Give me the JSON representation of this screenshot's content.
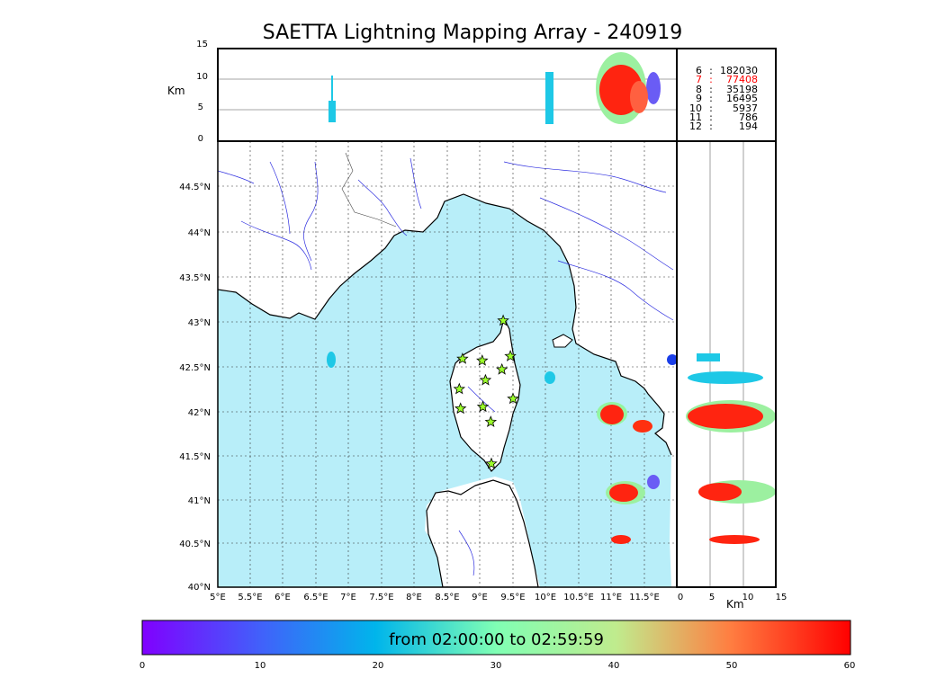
{
  "title": "SAETTA Lightning Mapping Array - 240919",
  "altitude_panel": {
    "ylabel": "Km",
    "ticks": [
      "15",
      "10",
      "5",
      "0"
    ]
  },
  "side_panel": {
    "xlabel": "Km",
    "ticks": [
      "0",
      "5",
      "10",
      "15"
    ]
  },
  "map": {
    "lat_ticks": [
      "44.5°N",
      "44°N",
      "43.5°N",
      "43°N",
      "42.5°N",
      "42°N",
      "41.5°N",
      "41°N",
      "40.5°N",
      "40°N"
    ],
    "lon_ticks": [
      "5°E",
      "5.5°E",
      "6°E",
      "6.5°E",
      "7°E",
      "7.5°E",
      "8°E",
      "8.5°E",
      "9°E",
      "9.5°E",
      "10°E",
      "10.5°E",
      "11°E",
      "11.5°E"
    ],
    "sea_color": "#b8eef9",
    "coast_color": "#000000",
    "river_color": "#3030e0",
    "station_color": "#9bff2a",
    "station_marker": "star-icon",
    "stations_lonlat": [
      [
        9.35,
        43.0
      ],
      [
        8.73,
        42.57
      ],
      [
        9.03,
        42.55
      ],
      [
        9.46,
        42.6
      ],
      [
        9.33,
        42.45
      ],
      [
        9.08,
        42.33
      ],
      [
        8.68,
        42.23
      ],
      [
        9.5,
        42.12
      ],
      [
        8.7,
        42.01
      ],
      [
        9.04,
        42.03
      ],
      [
        9.16,
        41.86
      ],
      [
        9.17,
        41.39
      ]
    ]
  },
  "stats": [
    {
      "alt": "6",
      "sep": ":",
      "count": "182030",
      "color": "#000000"
    },
    {
      "alt": "7",
      "sep": ":",
      "count": "77408",
      "color": "#ff0000"
    },
    {
      "alt": "8",
      "sep": ":",
      "count": "35198",
      "color": "#000000"
    },
    {
      "alt": "9",
      "sep": ":",
      "count": "16495",
      "color": "#000000"
    },
    {
      "alt": "10",
      "sep": ":",
      "count": "5937",
      "color": "#000000"
    },
    {
      "alt": "11",
      "sep": ":",
      "count": "786",
      "color": "#000000"
    },
    {
      "alt": "12",
      "sep": ":",
      "count": "194",
      "color": "#000000"
    }
  ],
  "colorbar": {
    "caption": "from 02:00:00 to 02:59:59",
    "ticks": [
      "0",
      "10",
      "20",
      "30",
      "40",
      "50",
      "60"
    ],
    "colormap": "rainbow"
  }
}
